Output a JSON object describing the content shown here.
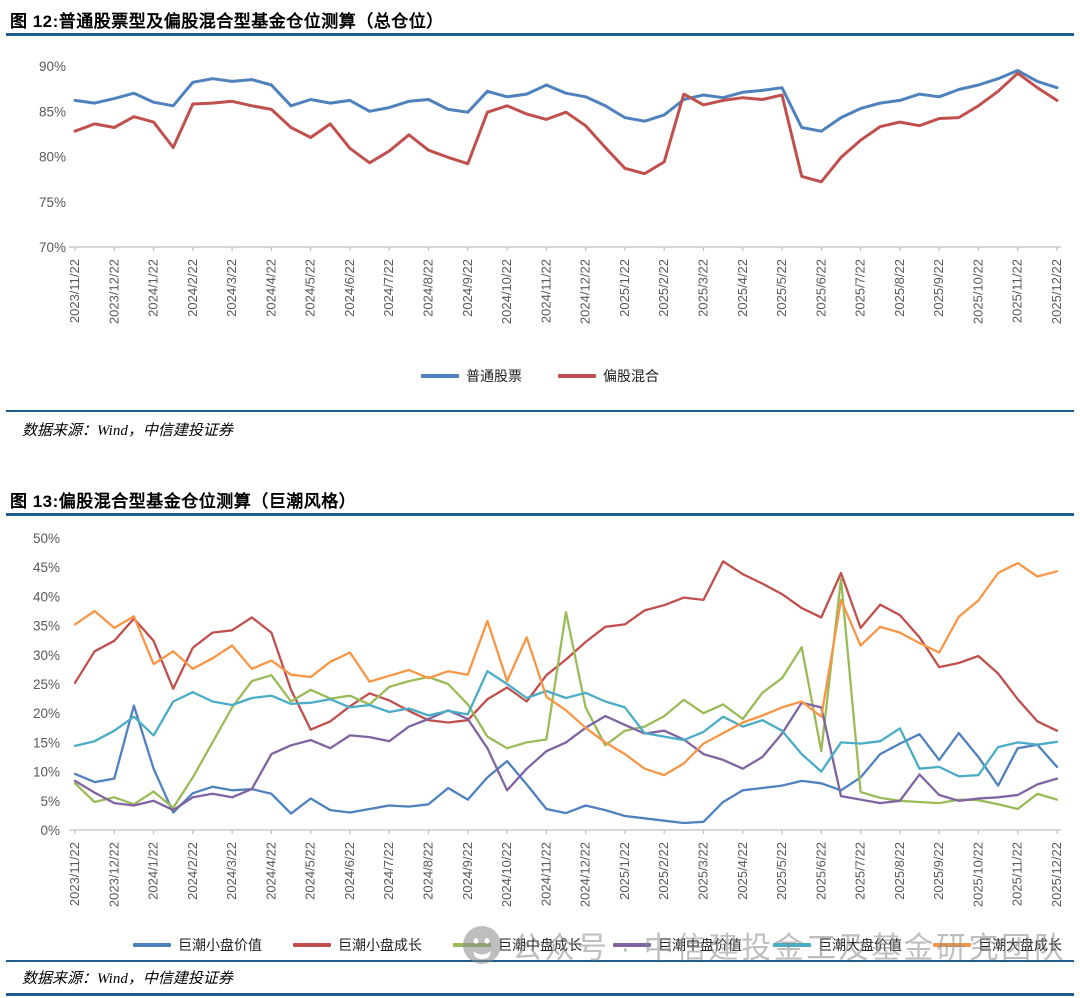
{
  "figure12": {
    "title": "图 12:普通股票型及偏股混合型基金仓位测算（总仓位）",
    "source": "数据来源：Wind，中信建投证券"
  },
  "figure13": {
    "title": "图 13:偏股混合型基金仓位测算（巨潮风格）",
    "source": "数据来源：Wind，中信建投证券"
  },
  "watermark": {
    "icon": "wechat-icon",
    "text": "公众号 · 中信建投金工及基金研究团队"
  },
  "colors": {
    "accent_rule": "#1F5C8B",
    "axis_text": "#595959",
    "axis_line": "#BFBFBF"
  },
  "chart_data": [
    {
      "type": "line",
      "title": "普通股票型及偏股混合型基金仓位测算（总仓位）",
      "grid": false,
      "legend_position": "bottom-center",
      "ylim": [
        70,
        90
      ],
      "yticks": [
        {
          "label": "90%",
          "value": 90
        },
        {
          "label": "85%",
          "value": 85
        },
        {
          "label": "80%",
          "value": 80
        },
        {
          "label": "75%",
          "value": 75
        },
        {
          "label": "70%",
          "value": 70
        }
      ],
      "x_tick_labels": [
        "2023/11/22",
        "2023/12/22",
        "2024/1/22",
        "2024/2/22",
        "2024/3/22",
        "2024/4/22",
        "2024/5/22",
        "2024/6/22",
        "2024/7/22",
        "2024/8/22",
        "2024/9/22",
        "2024/10/22",
        "2024/11/22",
        "2024/12/22",
        "2025/1/22",
        "2025/2/22",
        "2025/3/22",
        "2025/4/22",
        "2025/5/22",
        "2025/6/22",
        "2025/7/22",
        "2025/8/22",
        "2025/9/22",
        "2025/10/22",
        "2025/11/22",
        "2025/12/22"
      ],
      "points_per_tick": 2,
      "series": [
        {
          "name": "普通股票",
          "color": "#4F81BD",
          "values": [
            86.2,
            85.9,
            86.4,
            87.0,
            86.0,
            85.6,
            88.2,
            88.6,
            88.3,
            88.5,
            87.9,
            85.6,
            86.3,
            85.9,
            86.2,
            85.0,
            85.4,
            86.1,
            86.3,
            85.2,
            84.9,
            87.2,
            86.6,
            86.9,
            87.9,
            87.0,
            86.6,
            85.6,
            84.3,
            83.9,
            84.6,
            86.3,
            86.8,
            86.5,
            87.1,
            87.3,
            87.6,
            83.2,
            82.8,
            84.3,
            85.3,
            85.9,
            86.2,
            86.9,
            86.6,
            87.4,
            87.9,
            88.6,
            89.5,
            88.3,
            87.6
          ]
        },
        {
          "name": "偏股混合",
          "color": "#C0504D",
          "values": [
            82.8,
            83.6,
            83.2,
            84.4,
            83.8,
            81.0,
            85.8,
            85.9,
            86.1,
            85.6,
            85.2,
            83.2,
            82.1,
            83.6,
            80.9,
            79.3,
            80.6,
            82.4,
            80.7,
            79.9,
            79.2,
            84.9,
            85.6,
            84.7,
            84.1,
            84.9,
            83.4,
            81.0,
            78.7,
            78.1,
            79.4,
            86.9,
            85.7,
            86.2,
            86.5,
            86.3,
            86.8,
            77.8,
            77.2,
            79.9,
            81.8,
            83.3,
            83.8,
            83.4,
            84.2,
            84.3,
            85.6,
            87.2,
            89.2,
            87.6,
            86.2
          ]
        }
      ]
    },
    {
      "type": "line",
      "title": "偏股混合型基金仓位测算（巨潮风格）",
      "grid": false,
      "legend_position": "bottom-left",
      "ylim": [
        0,
        50
      ],
      "yticks": [
        {
          "label": "50%",
          "value": 50
        },
        {
          "label": "45%",
          "value": 45
        },
        {
          "label": "40%",
          "value": 40
        },
        {
          "label": "35%",
          "value": 35
        },
        {
          "label": "30%",
          "value": 30
        },
        {
          "label": "25%",
          "value": 25
        },
        {
          "label": "20%",
          "value": 20
        },
        {
          "label": "15%",
          "value": 15
        },
        {
          "label": "10%",
          "value": 10
        },
        {
          "label": "5%",
          "value": 5
        },
        {
          "label": "0%",
          "value": 0
        }
      ],
      "x_tick_labels": [
        "2023/11/22",
        "2023/12/22",
        "2024/1/22",
        "2024/2/22",
        "2024/3/22",
        "2024/4/22",
        "2024/5/22",
        "2024/6/22",
        "2024/7/22",
        "2024/8/22",
        "2024/9/22",
        "2024/10/22",
        "2024/11/22",
        "2024/12/22",
        "2025/1/22",
        "2025/2/22",
        "2025/3/22",
        "2025/4/22",
        "2025/5/22",
        "2025/6/22",
        "2025/7/22",
        "2025/8/22",
        "2025/9/22",
        "2025/10/22",
        "2025/11/22",
        "2025/12/22"
      ],
      "points_per_tick": 2,
      "series": [
        {
          "name": "巨潮小盘价值",
          "color": "#4F81BD",
          "values": [
            9.6,
            8.2,
            8.8,
            21.3,
            10.5,
            3.0,
            6.3,
            7.4,
            6.8,
            7.0,
            6.2,
            2.8,
            5.4,
            3.4,
            3.0,
            3.6,
            4.2,
            4.0,
            4.4,
            7.2,
            5.2,
            9.0,
            11.8,
            7.8,
            3.6,
            2.9,
            4.2,
            3.4,
            2.4,
            2.0,
            1.6,
            1.2,
            1.4,
            4.8,
            6.8,
            7.2,
            7.6,
            8.4,
            8.0,
            6.8,
            9.0,
            13.0,
            14.8,
            16.4,
            12.0,
            16.6,
            12.5,
            7.6,
            14.0,
            14.6,
            10.8
          ]
        },
        {
          "name": "巨潮小盘成长",
          "color": "#C0504D",
          "values": [
            25.2,
            30.6,
            32.4,
            36.2,
            32.4,
            24.2,
            31.2,
            33.8,
            34.2,
            36.4,
            33.8,
            24.0,
            17.2,
            18.6,
            21.2,
            23.4,
            22.2,
            20.4,
            18.8,
            18.4,
            18.8,
            22.4,
            24.4,
            22.0,
            26.5,
            29.2,
            32.2,
            34.8,
            35.2,
            37.6,
            38.5,
            39.8,
            39.4,
            46.0,
            43.8,
            42.2,
            40.4,
            38.0,
            36.4,
            44.0,
            34.6,
            38.6,
            36.8,
            33.0,
            27.9,
            28.6,
            29.8,
            26.8,
            22.4,
            18.6,
            17.0
          ]
        },
        {
          "name": "巨潮中盘成长",
          "color": "#9BBB59",
          "values": [
            8.0,
            4.8,
            5.6,
            4.4,
            6.6,
            3.8,
            9.0,
            15.0,
            21.0,
            25.5,
            26.5,
            22.0,
            24.0,
            22.5,
            23.0,
            21.5,
            24.5,
            25.5,
            26.2,
            25.0,
            21.5,
            16.0,
            14.0,
            15.0,
            15.5,
            37.3,
            21.0,
            14.5,
            17.0,
            17.7,
            19.5,
            22.3,
            20.0,
            21.5,
            19.0,
            23.5,
            26.0,
            31.3,
            13.5,
            43.0,
            6.5,
            5.5,
            5.0,
            4.8,
            4.6,
            5.2,
            5.1,
            4.4,
            3.6,
            6.2,
            5.2
          ]
        },
        {
          "name": "巨潮中盘价值",
          "color": "#8064A2",
          "values": [
            8.4,
            6.4,
            4.6,
            4.2,
            5.0,
            3.4,
            5.6,
            6.2,
            5.6,
            7.0,
            13.0,
            14.5,
            15.4,
            14.0,
            16.2,
            15.9,
            15.2,
            17.7,
            19.0,
            20.5,
            19.0,
            14.0,
            6.8,
            10.5,
            13.5,
            15.0,
            17.5,
            19.5,
            18.0,
            16.5,
            17.0,
            15.5,
            13.0,
            12.0,
            10.5,
            12.5,
            16.5,
            21.8,
            21.0,
            5.8,
            5.2,
            4.6,
            5.0,
            9.5,
            6.0,
            5.0,
            5.4,
            5.6,
            6.0,
            7.8,
            8.8
          ]
        },
        {
          "name": "巨潮大盘价值",
          "color": "#4BACC6",
          "values": [
            14.4,
            15.2,
            17.0,
            19.4,
            16.2,
            22.0,
            23.6,
            22.0,
            21.4,
            22.6,
            23.0,
            21.6,
            21.8,
            22.4,
            21.0,
            21.4,
            20.2,
            20.8,
            19.6,
            20.4,
            19.8,
            27.2,
            25.0,
            22.6,
            23.8,
            22.6,
            23.5,
            22.0,
            21.0,
            16.6,
            16.0,
            15.4,
            16.8,
            19.4,
            17.7,
            18.8,
            17.0,
            13.0,
            10.0,
            15.0,
            14.8,
            15.2,
            17.4,
            10.5,
            10.8,
            9.2,
            9.4,
            14.2,
            15.0,
            14.6,
            15.1
          ]
        },
        {
          "name": "巨潮大盘成长",
          "color": "#F79646",
          "values": [
            35.2,
            37.5,
            34.6,
            36.6,
            28.4,
            30.6,
            27.6,
            29.4,
            31.6,
            27.6,
            29.0,
            26.6,
            26.2,
            28.8,
            30.4,
            25.4,
            26.4,
            27.4,
            26.0,
            27.2,
            26.6,
            35.8,
            25.5,
            33.0,
            22.8,
            20.5,
            17.5,
            15.0,
            13.0,
            10.5,
            9.4,
            11.4,
            14.8,
            16.6,
            18.4,
            19.6,
            21.0,
            22.0,
            19.4,
            39.4,
            31.6,
            34.8,
            33.8,
            32.0,
            30.4,
            36.5,
            39.3,
            44.0,
            45.7,
            43.4,
            44.3
          ]
        }
      ]
    }
  ]
}
